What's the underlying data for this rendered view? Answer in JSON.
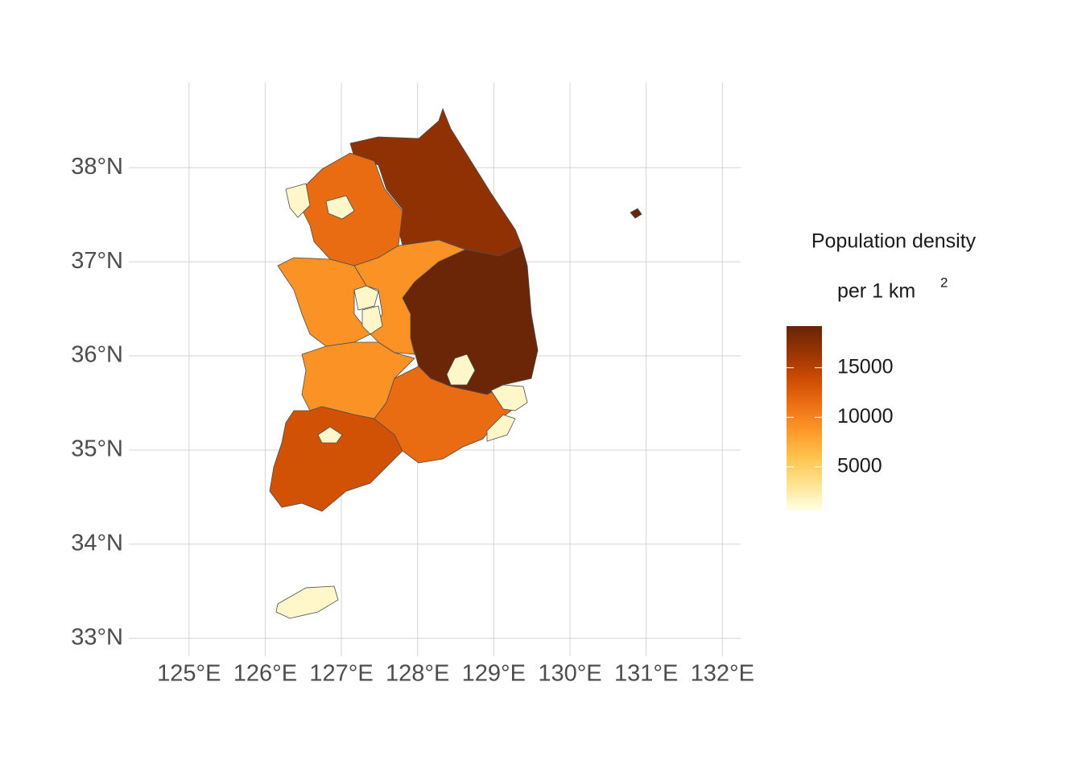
{
  "chart_data": {
    "type": "choropleth",
    "xlim": [
      124.21,
      132.24
    ],
    "ylim": [
      32.81,
      38.9
    ],
    "xticks": [
      {
        "value": 125,
        "label": "125°E"
      },
      {
        "value": 126,
        "label": "126°E"
      },
      {
        "value": 127,
        "label": "127°E"
      },
      {
        "value": 128,
        "label": "128°E"
      },
      {
        "value": 129,
        "label": "129°E"
      },
      {
        "value": 130,
        "label": "130°E"
      },
      {
        "value": 131,
        "label": "131°E"
      },
      {
        "value": 132,
        "label": "132°E"
      }
    ],
    "yticks": [
      {
        "value": 33,
        "label": "33°N"
      },
      {
        "value": 34,
        "label": "34°N"
      },
      {
        "value": 35,
        "label": "35°N"
      },
      {
        "value": 36,
        "label": "36°N"
      },
      {
        "value": 37,
        "label": "37°N"
      },
      {
        "value": 38,
        "label": "38°N"
      }
    ],
    "grid": true,
    "regions": [
      17000,
      19000,
      11500,
      1500,
      1500,
      9000,
      9000,
      1500,
      1500,
      9000,
      13500,
      1500,
      11500,
      1500,
      1500,
      1500,
      1500
    ],
    "legend": {
      "title": [
        "Population density",
        "per 1 km",
        "2"
      ],
      "limits": [
        600,
        19200
      ],
      "ticks": [
        5000,
        10000,
        15000
      ],
      "colors": [
        "#ffffe5",
        "#fee391",
        "#fec44f",
        "#fe9929",
        "#ec7014",
        "#cc4c02",
        "#993404",
        "#662506"
      ]
    }
  }
}
